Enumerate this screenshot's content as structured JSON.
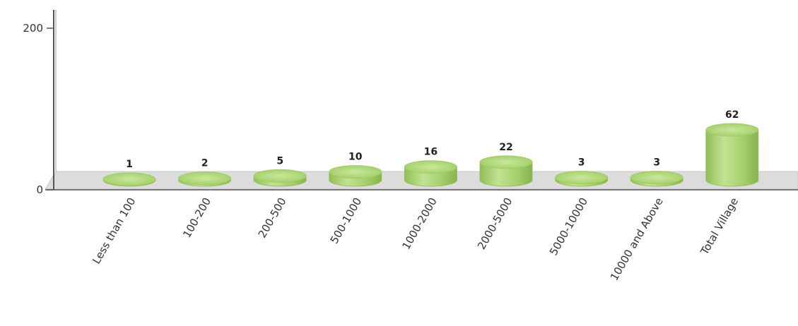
{
  "chart_data": {
    "type": "bar",
    "categories": [
      "Less than 100",
      "100-200",
      "200-500",
      "500-1000",
      "1000-2000",
      "2000-5000",
      "5000-10000",
      "10000 and Above",
      "Total Village"
    ],
    "values": [
      1,
      2,
      5,
      10,
      16,
      22,
      3,
      3,
      62
    ],
    "value_labels": [
      "1",
      "2",
      "5",
      "10",
      "16",
      "22",
      "3",
      "3",
      "62"
    ],
    "ylim": [
      0,
      200
    ],
    "yticks": [
      0,
      200
    ],
    "ytick_labels": [
      "0",
      "200"
    ],
    "grid": false,
    "style": "3d-cylinder",
    "colors": {
      "bar_body": "#9ccb62",
      "bar_top": "#b8de84",
      "floor": "#dcdcdc",
      "axis": "#666666"
    }
  }
}
